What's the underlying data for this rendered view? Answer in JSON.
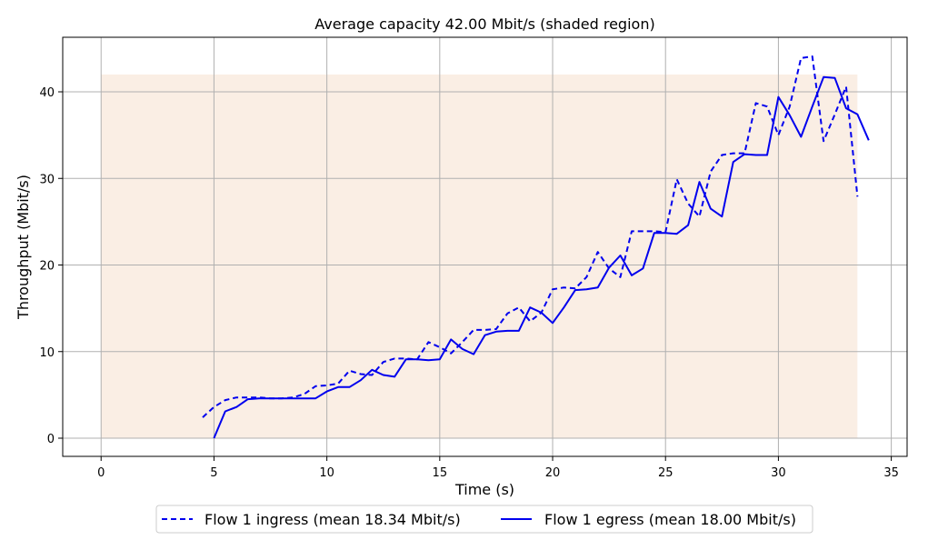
{
  "chart_data": {
    "type": "line",
    "title": "Average capacity 42.00 Mbit/s (shaded region)",
    "xlabel": "Time (s)",
    "ylabel": "Throughput (Mbit/s)",
    "xlim": [
      -1.7,
      35.7
    ],
    "ylim": [
      -2.1,
      46.3
    ],
    "xticks": [
      0,
      5,
      10,
      15,
      20,
      25,
      30,
      35
    ],
    "yticks": [
      0,
      10,
      20,
      30,
      40
    ],
    "grid": true,
    "legend_position": "bottom-center",
    "shaded_region": {
      "x": [
        0,
        33.5
      ],
      "y": [
        0,
        42.0
      ],
      "color": "#faeee4"
    },
    "series": [
      {
        "name": "Flow 1 ingress (mean 18.34 Mbit/s)",
        "style": "dashed",
        "color": "#0000ee",
        "x": [
          4.5,
          5.0,
          5.5,
          6.0,
          6.5,
          7.0,
          7.5,
          8.0,
          8.5,
          9.0,
          9.5,
          10.0,
          10.5,
          11.0,
          11.5,
          12.0,
          12.5,
          13.0,
          13.5,
          14.0,
          14.5,
          15.0,
          15.5,
          16.0,
          16.5,
          17.0,
          17.5,
          18.0,
          18.5,
          19.0,
          19.5,
          20.0,
          20.5,
          21.0,
          21.5,
          22.0,
          22.5,
          23.0,
          23.5,
          24.0,
          24.5,
          25.0,
          25.5,
          26.0,
          26.5,
          27.0,
          27.5,
          28.0,
          28.5,
          29.0,
          29.5,
          30.0,
          30.5,
          31.0,
          31.5,
          32.0,
          32.5,
          33.0,
          33.5
        ],
        "y": [
          2.4,
          3.6,
          4.4,
          4.7,
          4.7,
          4.7,
          4.6,
          4.6,
          4.7,
          5.1,
          6.0,
          6.1,
          6.3,
          7.8,
          7.4,
          7.3,
          8.8,
          9.2,
          9.2,
          9.1,
          11.1,
          10.5,
          9.8,
          11.1,
          12.5,
          12.5,
          12.6,
          14.4,
          15.1,
          13.5,
          14.5,
          17.2,
          17.4,
          17.3,
          18.6,
          21.5,
          19.6,
          18.6,
          23.9,
          23.9,
          23.9,
          23.8,
          29.9,
          27.1,
          25.6,
          30.8,
          32.7,
          32.9,
          32.9,
          38.7,
          38.3,
          35.0,
          38.3,
          43.9,
          44.1,
          34.3,
          37.4,
          40.6,
          27.9
        ]
      },
      {
        "name": "Flow 1 egress (mean 18.00 Mbit/s)",
        "style": "solid",
        "color": "#0000ee",
        "x": [
          5.0,
          5.5,
          6.0,
          6.5,
          7.0,
          7.5,
          8.0,
          8.5,
          9.0,
          9.5,
          10.0,
          10.5,
          11.0,
          11.5,
          12.0,
          12.5,
          13.0,
          13.5,
          14.0,
          14.5,
          15.0,
          15.5,
          16.0,
          16.5,
          17.0,
          17.5,
          18.0,
          18.5,
          19.0,
          19.5,
          20.0,
          20.5,
          21.0,
          21.5,
          22.0,
          22.5,
          23.0,
          23.5,
          24.0,
          24.5,
          25.0,
          25.5,
          26.0,
          26.5,
          27.0,
          27.5,
          28.0,
          28.5,
          29.0,
          29.5,
          30.0,
          30.5,
          31.0,
          31.5,
          32.0,
          32.5,
          33.0,
          33.5,
          34.0
        ],
        "y": [
          0.0,
          3.1,
          3.6,
          4.5,
          4.6,
          4.6,
          4.6,
          4.6,
          4.6,
          4.6,
          5.4,
          5.9,
          5.9,
          6.7,
          7.9,
          7.3,
          7.1,
          9.1,
          9.1,
          9.0,
          9.1,
          11.4,
          10.3,
          9.7,
          11.9,
          12.3,
          12.4,
          12.4,
          15.1,
          14.5,
          13.3,
          15.1,
          17.1,
          17.2,
          17.4,
          19.7,
          21.1,
          18.8,
          19.6,
          23.7,
          23.7,
          23.6,
          24.6,
          29.6,
          26.5,
          25.6,
          31.9,
          32.8,
          32.7,
          32.7,
          39.4,
          37.3,
          34.8,
          38.3,
          41.7,
          41.6,
          38.1,
          37.4,
          34.4
        ]
      }
    ]
  }
}
